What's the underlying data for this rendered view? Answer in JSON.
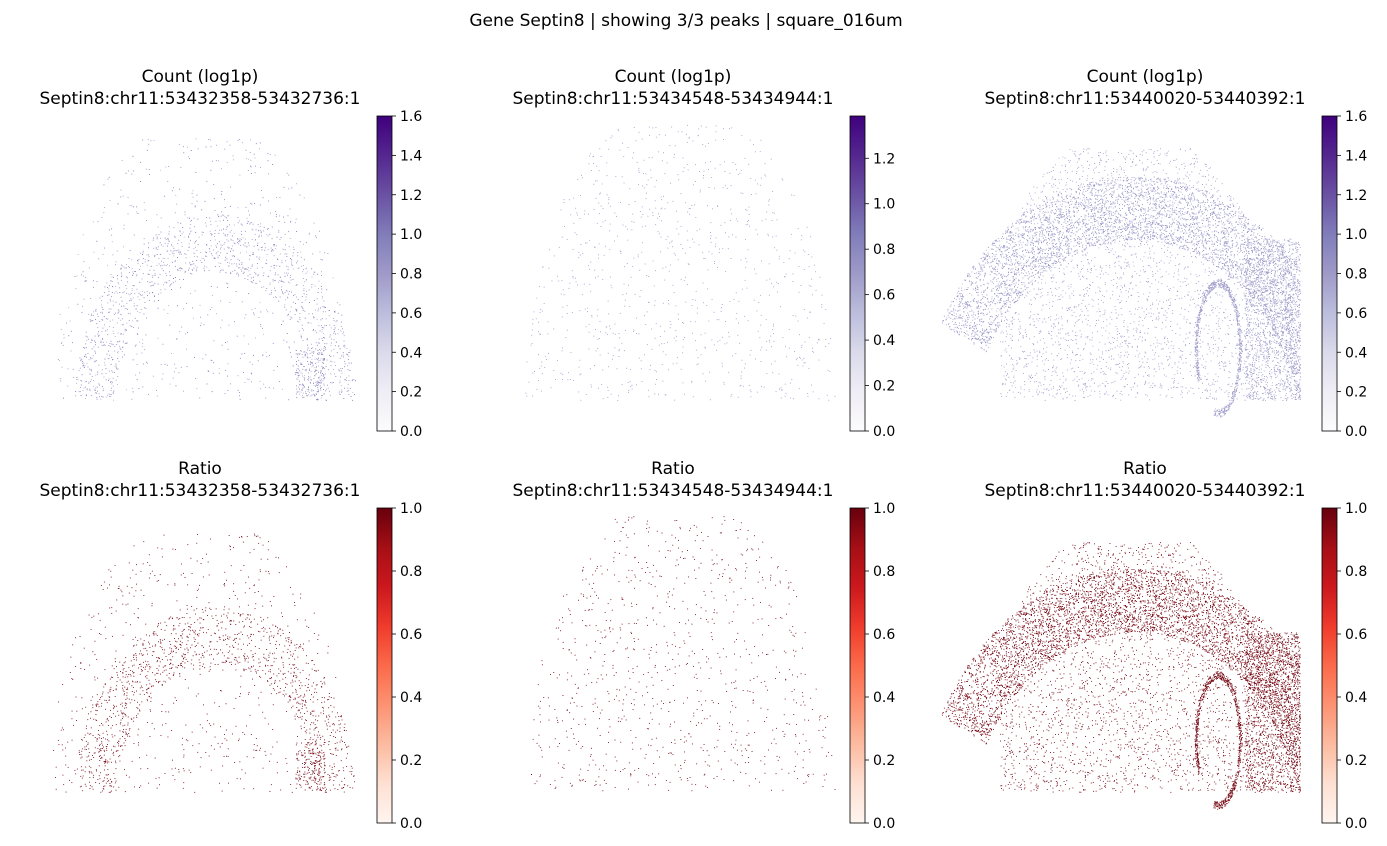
{
  "figure": {
    "suptitle": "Gene Septin8 | showing 3/3 peaks | square_016um"
  },
  "chart_data": [
    {
      "type": "scatter",
      "title": "Count (log1p)",
      "subtitle": "Septin8:chr11:53432358-53432736:1",
      "colormap": "Purples",
      "colorbar": {
        "min": 0.0,
        "max": 1.6,
        "ticks": [
          "0.0",
          "0.2",
          "0.4",
          "0.6",
          "0.8",
          "1.0",
          "1.2",
          "1.4",
          "1.6"
        ]
      },
      "pattern": "sparse-cortex",
      "value_range": [
        0.69,
        1.1
      ]
    },
    {
      "type": "scatter",
      "title": "Count (log1p)",
      "subtitle": "Septin8:chr11:53434548-53434944:1",
      "colormap": "Purples",
      "colorbar": {
        "min": 0.0,
        "max": 1.386,
        "ticks": [
          "0.0",
          "0.2",
          "0.4",
          "0.6",
          "0.8",
          "1.0",
          "1.2"
        ]
      },
      "pattern": "very-sparse",
      "value_range": [
        0.69,
        0.69
      ]
    },
    {
      "type": "scatter",
      "title": "Count (log1p)",
      "subtitle": "Septin8:chr11:53440020-53440392:1",
      "colormap": "Purples",
      "colorbar": {
        "min": 0.0,
        "max": 1.6,
        "ticks": [
          "0.0",
          "0.2",
          "0.4",
          "0.6",
          "0.8",
          "1.0",
          "1.2",
          "1.4",
          "1.6"
        ]
      },
      "pattern": "dense-brain",
      "value_range": [
        0.69,
        0.9
      ]
    },
    {
      "type": "scatter",
      "title": "Ratio",
      "subtitle": "Septin8:chr11:53432358-53432736:1",
      "colormap": "Reds",
      "colorbar": {
        "min": 0.0,
        "max": 1.0,
        "ticks": [
          "0.0",
          "0.2",
          "0.4",
          "0.6",
          "0.8",
          "1.0"
        ]
      },
      "pattern": "sparse-cortex",
      "value_range": [
        0.95,
        1.0
      ]
    },
    {
      "type": "scatter",
      "title": "Ratio",
      "subtitle": "Septin8:chr11:53434548-53434944:1",
      "colormap": "Reds",
      "colorbar": {
        "min": 0.0,
        "max": 1.0,
        "ticks": [
          "0.0",
          "0.2",
          "0.4",
          "0.6",
          "0.8",
          "1.0"
        ]
      },
      "pattern": "very-sparse",
      "value_range": [
        0.95,
        1.0
      ]
    },
    {
      "type": "scatter",
      "title": "Ratio",
      "subtitle": "Septin8:chr11:53440020-53440392:1",
      "colormap": "Reds",
      "colorbar": {
        "min": 0.0,
        "max": 1.0,
        "ticks": [
          "0.0",
          "0.2",
          "0.4",
          "0.6",
          "0.8",
          "1.0"
        ]
      },
      "pattern": "dense-brain",
      "value_range": [
        0.95,
        1.0
      ]
    }
  ],
  "colormaps": {
    "Purples": [
      "#fcfbfd",
      "#efedf5",
      "#dadaeb",
      "#bcbddc",
      "#9e9ac8",
      "#807dba",
      "#6a51a3",
      "#54278f",
      "#3f007d"
    ],
    "Reds": [
      "#fff5f0",
      "#fee0d2",
      "#fcbba1",
      "#fc9272",
      "#fb6a4a",
      "#ef3b2c",
      "#cb181d",
      "#a50f15",
      "#67000d"
    ]
  }
}
